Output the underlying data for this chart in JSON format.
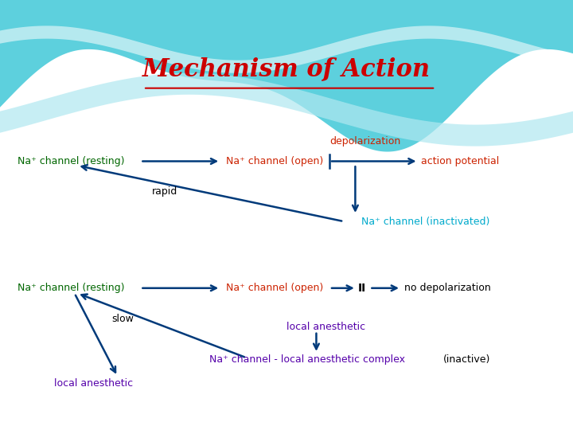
{
  "title": "Mechanism of Action",
  "title_color": "#cc0000",
  "title_fontsize": 22,
  "top_section": {
    "na_resting_label": "Na⁺ channel (resting)",
    "na_resting_color": "#006600",
    "na_open_label": "Na⁺ channel (open)",
    "na_open_color": "#cc2200",
    "depolarization_label": "depolarization",
    "depolarization_color": "#cc2200",
    "action_potential_label": "action potential",
    "action_potential_color": "#cc2200",
    "na_inactivated_label": "Na⁺ channel (inactivated)",
    "na_inactivated_color": "#00aacc",
    "rapid_label": "rapid",
    "rapid_color": "#000000"
  },
  "bottom_section": {
    "na_resting_label": "Na⁺ channel (resting)",
    "na_resting_color": "#006600",
    "na_open_label": "Na⁺ channel (open)",
    "na_open_color": "#cc2200",
    "no_depolarization_label": "no depolarization",
    "no_depolarization_color": "#000000",
    "ii_label": "II",
    "ii_color": "#000000",
    "local_anesthetic_label": "local anesthetic",
    "local_anesthetic_color": "#5500aa",
    "na_complex_label": "Na⁺ channel - local anesthetic complex",
    "na_complex_color": "#5500aa",
    "inactive_label": "(inactive)",
    "inactive_color": "#000000",
    "slow_label": "slow",
    "slow_color": "#000000",
    "local_anesthetic2_label": "local anesthetic",
    "local_anesthetic2_color": "#5500aa"
  },
  "arrow_color": "#003a7a",
  "arrow_lw": 1.8,
  "wave_color_top": "#40c8d8",
  "wave_highlight": "#ffffff",
  "wave_color_band": "#b0e8f0"
}
